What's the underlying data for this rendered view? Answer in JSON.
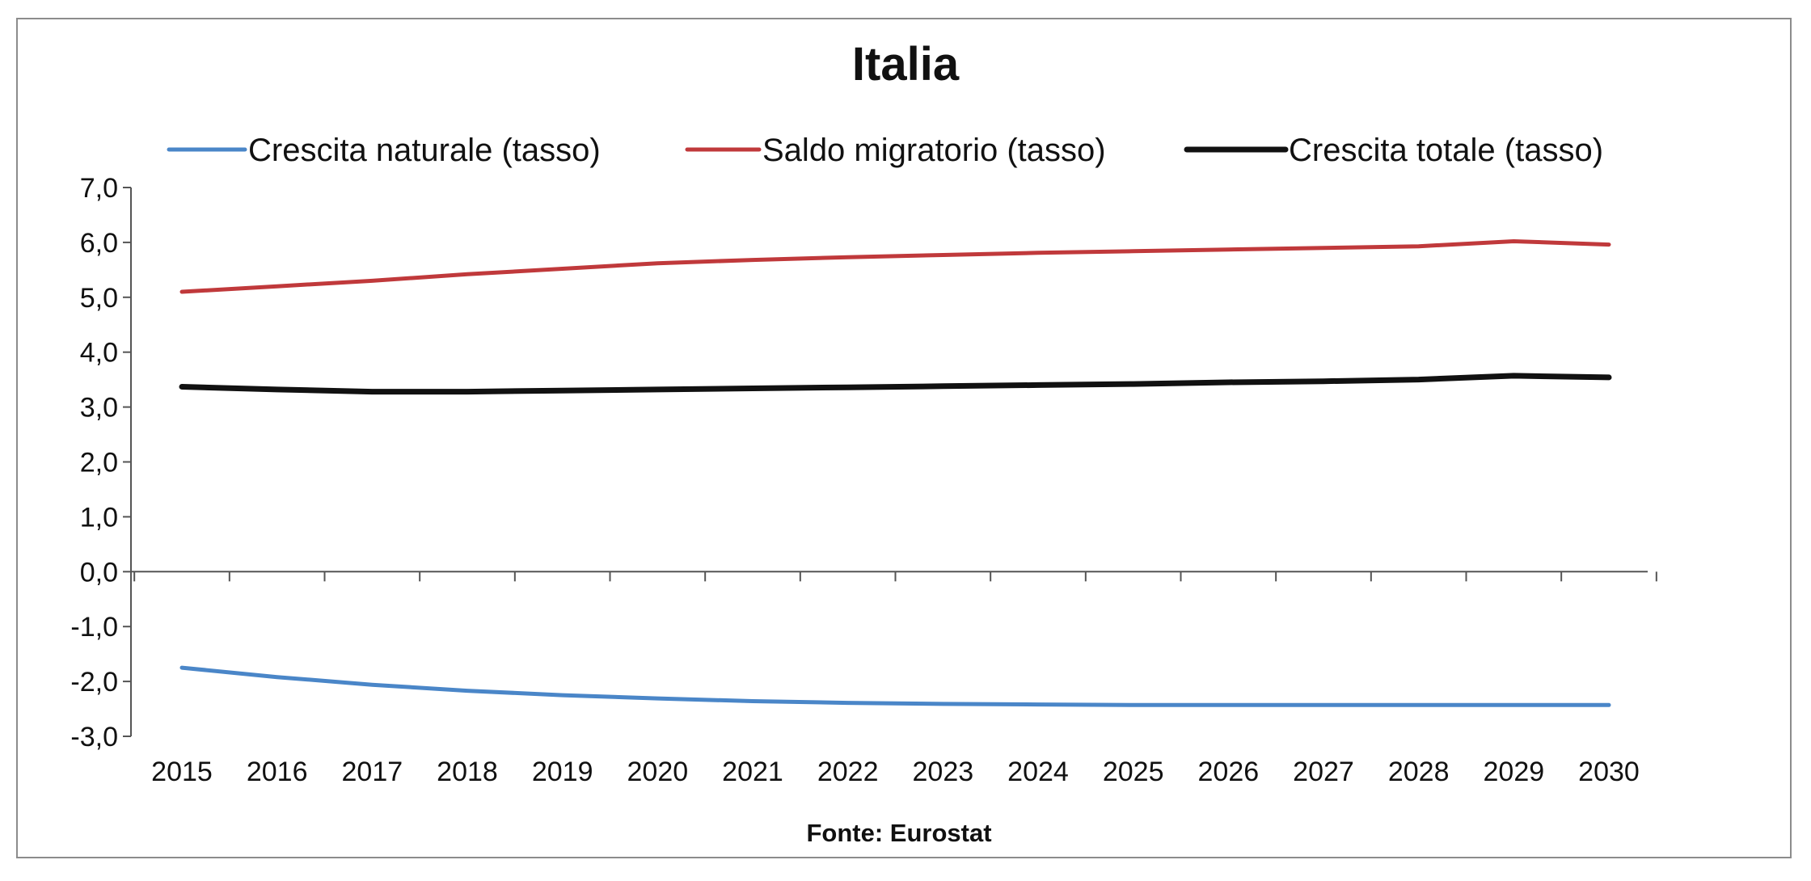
{
  "chart_data": {
    "type": "line",
    "title": "Italia",
    "source": "Fonte: Eurostat",
    "x": [
      "2015",
      "2016",
      "2017",
      "2018",
      "2019",
      "2020",
      "2021",
      "2022",
      "2023",
      "2024",
      "2025",
      "2026",
      "2027",
      "2028",
      "2029",
      "2030"
    ],
    "ylim": [
      -3.0,
      7.0
    ],
    "yticks": [
      "7,0",
      "6,0",
      "5,0",
      "4,0",
      "3,0",
      "2,0",
      "1,0",
      "0,0",
      "-1,0",
      "-2,0",
      "-3,0"
    ],
    "ytick_values": [
      7,
      6,
      5,
      4,
      3,
      2,
      1,
      0,
      -1,
      -2,
      -3
    ],
    "grid": false,
    "legend_position": "top",
    "series": [
      {
        "name": "Crescita naturale (tasso)",
        "color": "#4a86c8",
        "values": [
          -1.75,
          -1.92,
          -2.06,
          -2.17,
          -2.25,
          -2.31,
          -2.36,
          -2.39,
          -2.41,
          -2.42,
          -2.43,
          -2.43,
          -2.43,
          -2.43,
          -2.43,
          -2.43
        ]
      },
      {
        "name": "Saldo migratorio (tasso)",
        "color": "#c0393b",
        "values": [
          5.1,
          5.2,
          5.3,
          5.42,
          5.52,
          5.62,
          5.68,
          5.73,
          5.77,
          5.81,
          5.84,
          5.87,
          5.9,
          5.93,
          6.02,
          5.96
        ]
      },
      {
        "name": "Crescita totale (tasso)",
        "color": "#111111",
        "values": [
          3.37,
          3.32,
          3.28,
          3.28,
          3.3,
          3.32,
          3.34,
          3.36,
          3.38,
          3.4,
          3.42,
          3.45,
          3.47,
          3.5,
          3.57,
          3.54
        ]
      }
    ]
  }
}
